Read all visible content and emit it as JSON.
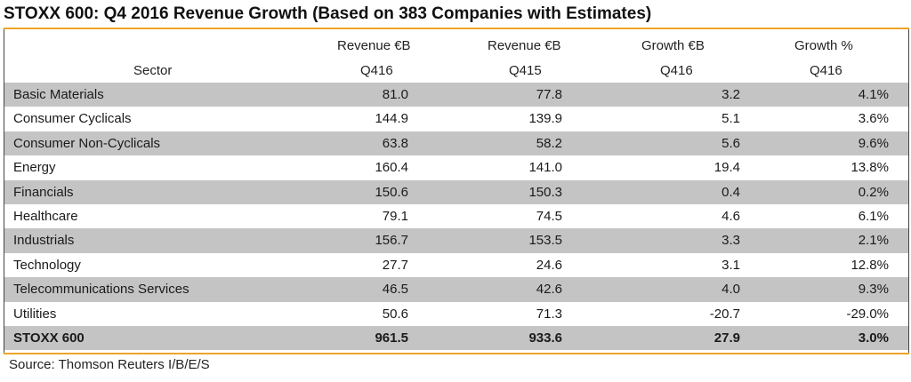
{
  "title": "STOXX 600: Q4 2016 Revenue Growth (Based on 383 Companies with Estimates)",
  "source": "Source: Thomson Reuters I/B/E/S",
  "colors": {
    "accent_rule": "#f0a22a",
    "shaded_row": "#c4c4c4"
  },
  "chart_data": {
    "type": "table",
    "title": "STOXX 600: Q4 2016 Revenue Growth (Based on 383 Companies with Estimates)",
    "columns": [
      {
        "line1": "",
        "line2": "Sector"
      },
      {
        "line1": "Revenue €B",
        "line2": "Q416"
      },
      {
        "line1": "Revenue €B",
        "line2": "Q415"
      },
      {
        "line1": "Growth €B",
        "line2": "Q416"
      },
      {
        "line1": "Growth %",
        "line2": "Q416"
      }
    ],
    "rows": [
      {
        "sector": "Basic Materials",
        "rev_q416": "81.0",
        "rev_q415": "77.8",
        "growth_eur": "3.2",
        "growth_pct": "4.1%"
      },
      {
        "sector": "Consumer Cyclicals",
        "rev_q416": "144.9",
        "rev_q415": "139.9",
        "growth_eur": "5.1",
        "growth_pct": "3.6%"
      },
      {
        "sector": "Consumer Non-Cyclicals",
        "rev_q416": "63.8",
        "rev_q415": "58.2",
        "growth_eur": "5.6",
        "growth_pct": "9.6%"
      },
      {
        "sector": "Energy",
        "rev_q416": "160.4",
        "rev_q415": "141.0",
        "growth_eur": "19.4",
        "growth_pct": "13.8%"
      },
      {
        "sector": "Financials",
        "rev_q416": "150.6",
        "rev_q415": "150.3",
        "growth_eur": "0.4",
        "growth_pct": "0.2%"
      },
      {
        "sector": "Healthcare",
        "rev_q416": "79.1",
        "rev_q415": "74.5",
        "growth_eur": "4.6",
        "growth_pct": "6.1%"
      },
      {
        "sector": "Industrials",
        "rev_q416": "156.7",
        "rev_q415": "153.5",
        "growth_eur": "3.3",
        "growth_pct": "2.1%"
      },
      {
        "sector": "Technology",
        "rev_q416": "27.7",
        "rev_q415": "24.6",
        "growth_eur": "3.1",
        "growth_pct": "12.8%"
      },
      {
        "sector": "Telecommunications Services",
        "rev_q416": "46.5",
        "rev_q415": "42.6",
        "growth_eur": "4.0",
        "growth_pct": "9.3%"
      },
      {
        "sector": "Utilities",
        "rev_q416": "50.6",
        "rev_q415": "71.3",
        "growth_eur": "-20.7",
        "growth_pct": "-29.0%"
      }
    ],
    "total": {
      "sector": "STOXX 600",
      "rev_q416": "961.5",
      "rev_q415": "933.6",
      "growth_eur": "27.9",
      "growth_pct": "3.0%"
    }
  }
}
